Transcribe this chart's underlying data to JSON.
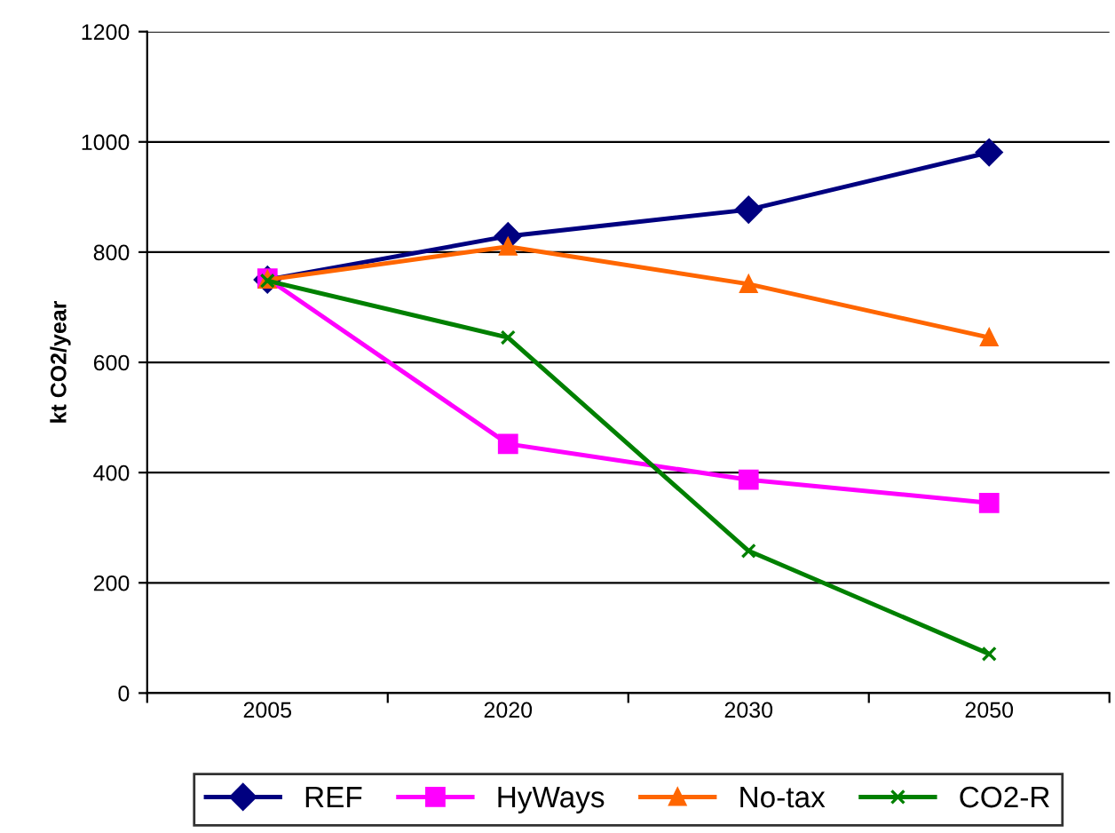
{
  "chart_data": {
    "type": "line",
    "ylabel": "kt CO2/year",
    "categories": [
      "2005",
      "2020",
      "2030",
      "2050"
    ],
    "series": [
      {
        "name": "REF",
        "color": "#000080",
        "marker": "diamond",
        "values": [
          750,
          829,
          877,
          981
        ]
      },
      {
        "name": "HyWays",
        "color": "#ff00ff",
        "marker": "square",
        "values": [
          752,
          452,
          387,
          345
        ]
      },
      {
        "name": "No-tax",
        "color": "#ff6600",
        "marker": "triangle",
        "values": [
          750,
          810,
          742,
          645
        ]
      },
      {
        "name": "CO2-R",
        "color": "#008000",
        "marker": "cross",
        "values": [
          748,
          645,
          258,
          71
        ]
      }
    ],
    "ylim": [
      0,
      1200
    ],
    "yticks": [
      0,
      200,
      400,
      600,
      800,
      1000,
      1200
    ],
    "grid": "y",
    "legend": "bottom",
    "line_style": "solid"
  }
}
